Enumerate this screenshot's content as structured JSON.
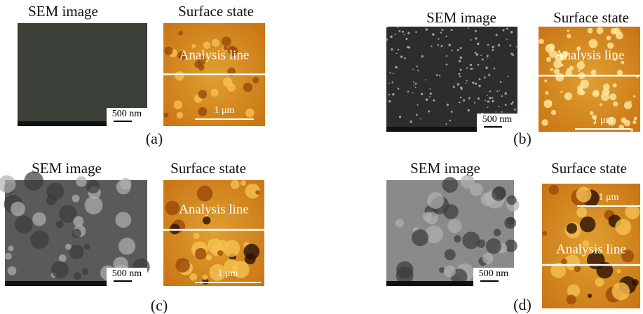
{
  "panels": [
    {
      "label": "(a)",
      "sem_title": "SEM image",
      "afm_title": "Surface state",
      "sem_scale": "500 nm",
      "afm_scale": "1 μm",
      "analysis_line": "Analysis line"
    },
    {
      "label": "(b)",
      "sem_title": "SEM image",
      "afm_title": "Surface state",
      "sem_scale": "500 nm",
      "afm_scale": "1 μm",
      "analysis_line": "Analysis line"
    },
    {
      "label": "(c)",
      "sem_title": "SEM image",
      "afm_title": "Surface state",
      "sem_scale": "500 nm",
      "afm_scale": "1 μm",
      "analysis_line": "Analysis line"
    },
    {
      "label": "(d)",
      "sem_title": "SEM image",
      "afm_title": "Surface state",
      "sem_scale": "500 nm",
      "afm_scale": "1 μm",
      "analysis_line": "Analysis line"
    }
  ]
}
